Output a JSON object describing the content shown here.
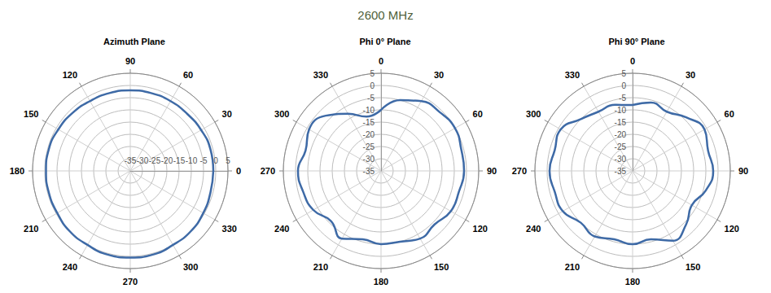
{
  "title": "2600 MHz",
  "chart_data": [
    {
      "type": "polar",
      "title": "Azimuth Plane",
      "color": "#3e6aa6",
      "grid": true,
      "theta": [
        0,
        15,
        30,
        45,
        60,
        75,
        90,
        105,
        120,
        135,
        150,
        165,
        180,
        195,
        210,
        225,
        240,
        255,
        270,
        285,
        300,
        315,
        330,
        345,
        360
      ],
      "values": [
        -1,
        -1,
        -1.5,
        -2,
        -2,
        -2,
        -2,
        -2,
        -2,
        -1.5,
        -1,
        -0.5,
        -0.5,
        -0.5,
        -0.5,
        0,
        0,
        0.5,
        0.5,
        0.5,
        0,
        0,
        -0.5,
        -1,
        -1
      ],
      "rlim": [
        -35,
        5
      ],
      "rticks": [
        -35,
        -30,
        -25,
        -20,
        -15,
        -10,
        -5,
        0,
        5
      ],
      "thetalim": [
        0,
        360
      ],
      "thetaticks": [
        0,
        30,
        60,
        90,
        120,
        150,
        180,
        210,
        240,
        270,
        300,
        330
      ]
    },
    {
      "type": "polar",
      "title": "Phi 0° Plane",
      "color": "#3e6aa6",
      "grid": true,
      "theta": [
        0,
        15,
        30,
        45,
        60,
        75,
        90,
        105,
        120,
        135,
        150,
        165,
        180,
        195,
        210,
        225,
        240,
        255,
        270,
        285,
        300,
        315,
        330,
        345,
        360
      ],
      "values": [
        -10,
        -5,
        -2,
        -1,
        0,
        -1,
        -1,
        -2,
        -2,
        -4,
        -3,
        -5,
        -5,
        -6,
        -3,
        -6,
        -3,
        -2,
        -1,
        -3,
        -1,
        -3,
        -8,
        -12,
        -10
      ],
      "rlim": [
        -35,
        5
      ],
      "rticks": [
        -35,
        -30,
        -25,
        -20,
        -15,
        -10,
        -5,
        0,
        5
      ],
      "thetalim": [
        0,
        360
      ],
      "thetaticks": [
        0,
        30,
        60,
        90,
        120,
        150,
        180,
        210,
        240,
        270,
        300,
        330
      ]
    },
    {
      "type": "polar",
      "title": "Phi 90° Plane",
      "color": "#3e6aa6",
      "grid": true,
      "theta": [
        0,
        15,
        30,
        45,
        60,
        75,
        90,
        105,
        120,
        135,
        150,
        165,
        180,
        195,
        210,
        225,
        240,
        255,
        270,
        285,
        300,
        315,
        330,
        345,
        360
      ],
      "values": [
        -8,
        -6,
        -7,
        -4,
        -1,
        -3,
        -2,
        -4,
        -7,
        -4,
        -2,
        -6,
        -5,
        -6,
        -4,
        -5,
        -2,
        -2,
        -1,
        -2,
        -1,
        -5,
        -7,
        -7,
        -8
      ],
      "rlim": [
        -35,
        5
      ],
      "rticks": [
        -35,
        -30,
        -25,
        -20,
        -15,
        -10,
        -5,
        0,
        5
      ],
      "thetalim": [
        0,
        360
      ],
      "thetaticks": [
        0,
        30,
        60,
        90,
        120,
        150,
        180,
        210,
        240,
        270,
        300,
        330
      ]
    }
  ]
}
